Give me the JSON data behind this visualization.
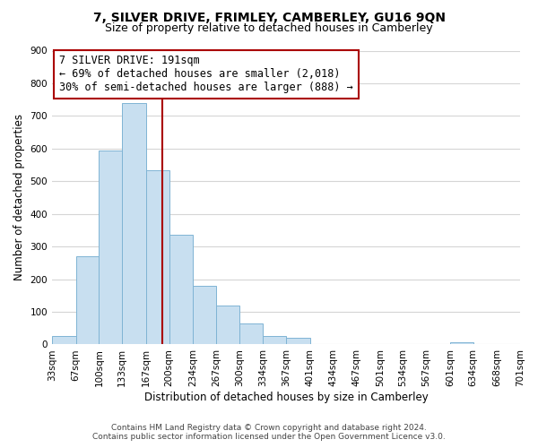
{
  "title": "7, SILVER DRIVE, FRIMLEY, CAMBERLEY, GU16 9QN",
  "subtitle": "Size of property relative to detached houses in Camberley",
  "xlabel": "Distribution of detached houses by size in Camberley",
  "ylabel": "Number of detached properties",
  "bar_edges": [
    33,
    67,
    100,
    133,
    167,
    200,
    234,
    267,
    300,
    334,
    367,
    401,
    434,
    467,
    501,
    534,
    567,
    601,
    634,
    668,
    701
  ],
  "bar_heights": [
    27,
    270,
    595,
    740,
    535,
    335,
    180,
    120,
    65,
    25,
    20,
    0,
    0,
    0,
    0,
    0,
    0,
    8,
    0,
    0,
    0
  ],
  "bar_color": "#c8dff0",
  "bar_edge_color": "#7fb4d4",
  "grid_color": "#d5d5d5",
  "vline_x": 191,
  "vline_color": "#aa0000",
  "annotation_text_line1": "7 SILVER DRIVE: 191sqm",
  "annotation_text_line2": "← 69% of detached houses are smaller (2,018)",
  "annotation_text_line3": "30% of semi-detached houses are larger (888) →",
  "ylim": [
    0,
    900
  ],
  "yticks": [
    0,
    100,
    200,
    300,
    400,
    500,
    600,
    700,
    800,
    900
  ],
  "tick_labels": [
    "33sqm",
    "67sqm",
    "100sqm",
    "133sqm",
    "167sqm",
    "200sqm",
    "234sqm",
    "267sqm",
    "300sqm",
    "334sqm",
    "367sqm",
    "401sqm",
    "434sqm",
    "467sqm",
    "501sqm",
    "534sqm",
    "567sqm",
    "601sqm",
    "634sqm",
    "668sqm",
    "701sqm"
  ],
  "footer_line1": "Contains HM Land Registry data © Crown copyright and database right 2024.",
  "footer_line2": "Contains public sector information licensed under the Open Government Licence v3.0.",
  "background_color": "#ffffff",
  "title_fontsize": 10,
  "subtitle_fontsize": 9,
  "annot_fontsize": 8.5,
  "axis_label_fontsize": 8.5,
  "tick_fontsize": 7.5,
  "footer_fontsize": 6.5
}
